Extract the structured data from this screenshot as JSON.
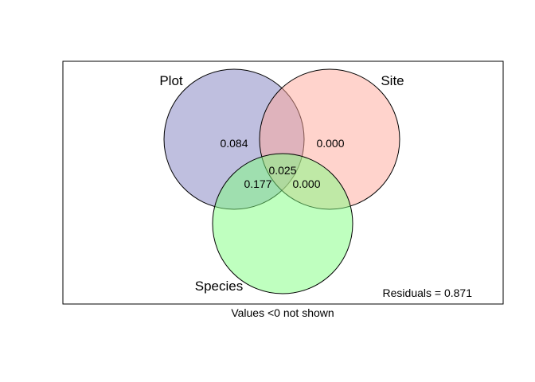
{
  "diagram": {
    "type": "venn",
    "sets": [
      {
        "key": "plot",
        "label": "Plot",
        "color": "#8080c0"
      },
      {
        "key": "site",
        "label": "Site",
        "color": "#ffa89a"
      },
      {
        "key": "species",
        "label": "Species",
        "color": "#80ff80"
      }
    ],
    "fractions": {
      "plot_only": "0.084",
      "site_only": "0.000",
      "plot_site_species": "0.025",
      "plot_species": "0.177",
      "site_species": "0.000"
    },
    "residuals_text": "Residuals = 0.871",
    "note": "Values <0 not shown",
    "outline_color": "#000000",
    "circle_opacity": 0.5
  }
}
